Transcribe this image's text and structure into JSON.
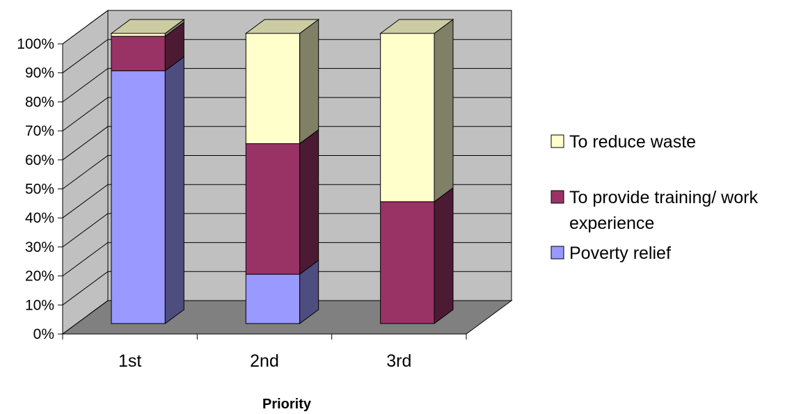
{
  "chart_data": {
    "type": "bar",
    "stacked": true,
    "percent_stacked": true,
    "three_d": true,
    "title": "",
    "xlabel": "Priority",
    "ylabel": "",
    "ylim": [
      0,
      100
    ],
    "y_tick_labels": [
      "0%",
      "10%",
      "20%",
      "30%",
      "40%",
      "50%",
      "60%",
      "70%",
      "80%",
      "90%",
      "100%"
    ],
    "categories": [
      "1st",
      "2nd",
      "3rd"
    ],
    "series": [
      {
        "name": "Poverty relief",
        "values": [
          88,
          17,
          0
        ],
        "color": "#9999ff"
      },
      {
        "name": "To provide training/ work experience",
        "legend_lines": [
          "To provide training/ work",
          "experience"
        ],
        "values": [
          12,
          45,
          42
        ],
        "color": "#993366"
      },
      {
        "name": "To reduce waste",
        "values": [
          1,
          38,
          58
        ],
        "color": "#ffffcc"
      }
    ],
    "legend_order": [
      "To reduce waste",
      "To provide training/ work experience",
      "Poverty relief"
    ],
    "legend_position": "right",
    "grid": true,
    "wall_color": "#c0c0c0",
    "floor_color": "#808080"
  }
}
